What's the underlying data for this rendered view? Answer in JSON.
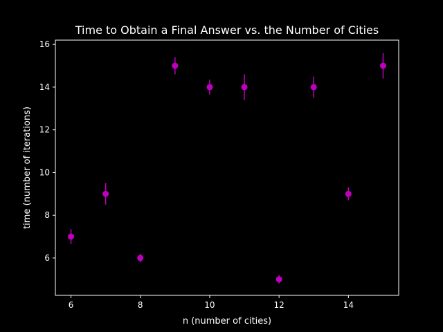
{
  "chart_data": {
    "type": "scatter",
    "title": "Time to Obtain a Final Answer vs. the Number of Cities",
    "xlabel": "n (number of cities)",
    "ylabel": "time (number of iterations)",
    "xlim": [
      5.55,
      15.45
    ],
    "ylim": [
      4.25,
      16.2
    ],
    "xticks": [
      6,
      8,
      10,
      12,
      14
    ],
    "yticks": [
      6,
      8,
      10,
      12,
      14,
      16
    ],
    "grid": false,
    "marker_color": "#bf00bf",
    "background_color": "#000000",
    "foreground_color": "#ffffff",
    "points": [
      {
        "x": 6,
        "y": 7,
        "err": 0.35
      },
      {
        "x": 7,
        "y": 9,
        "err": 0.5
      },
      {
        "x": 8,
        "y": 6,
        "err": 0.2
      },
      {
        "x": 9,
        "y": 15,
        "err": 0.4
      },
      {
        "x": 10,
        "y": 14,
        "err": 0.35
      },
      {
        "x": 11,
        "y": 14,
        "err": 0.6
      },
      {
        "x": 12,
        "y": 5,
        "err": 0.2
      },
      {
        "x": 13,
        "y": 14,
        "err": 0.5
      },
      {
        "x": 14,
        "y": 9,
        "err": 0.3
      },
      {
        "x": 15,
        "y": 15,
        "err": 0.6
      }
    ]
  }
}
